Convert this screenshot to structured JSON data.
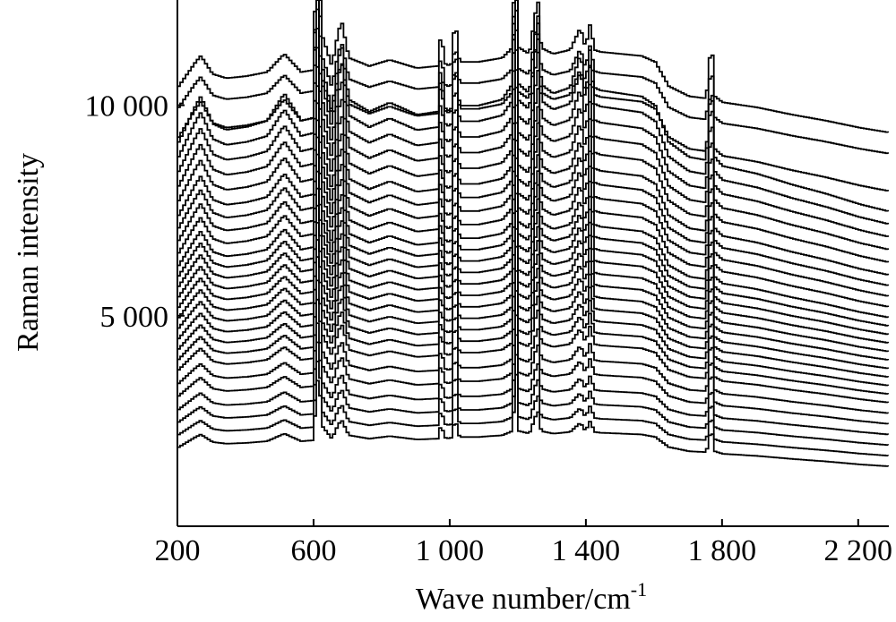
{
  "chart_data": {
    "type": "line",
    "title": "",
    "xlabel": "Wave number/cm",
    "xlabel_superscript": "-1",
    "ylabel": "Raman intensity",
    "xlim": [
      200,
      2290
    ],
    "ylim": [
      0,
      12500
    ],
    "x_ticks": [
      200,
      600,
      1000,
      1400,
      1800,
      2200
    ],
    "x_tick_labels": [
      "200",
      "600",
      "1 000",
      "1 400",
      "1 800",
      "2 200"
    ],
    "y_ticks": [
      5000,
      10000
    ],
    "y_tick_labels": [
      "5 000",
      "10 000"
    ],
    "grid": false,
    "legend": "none",
    "line_color": "#000000",
    "baseline_spectrum_x": [
      200,
      250,
      265,
      300,
      340,
      400,
      460,
      510,
      560,
      595,
      605,
      612,
      620,
      650,
      670,
      680,
      700,
      760,
      820,
      900,
      960,
      970,
      985,
      1000,
      1012,
      1025,
      1080,
      1150,
      1180,
      1192,
      1200,
      1230,
      1255,
      1265,
      1300,
      1350,
      1380,
      1395,
      1410,
      1420,
      1440,
      1500,
      1560,
      1600,
      1640,
      1700,
      1750,
      1765,
      1775,
      1790,
      1800,
      1900,
      2000,
      2100,
      2200,
      2290
    ],
    "baseline_spectrum_y": [
      2.4,
      3.6,
      3.9,
      3.0,
      2.8,
      2.9,
      3.1,
      4.0,
      3.1,
      3.2,
      9.0,
      12.0,
      5.0,
      3.4,
      5.2,
      5.5,
      3.8,
      3.4,
      3.7,
      3.3,
      3.4,
      5.0,
      3.4,
      3.5,
      5.8,
      3.6,
      3.6,
      3.8,
      4.3,
      11.0,
      4.3,
      4.0,
      6.8,
      4.3,
      4.0,
      4.2,
      5.3,
      4.3,
      5.6,
      4.2,
      4.1,
      4.0,
      3.9,
      3.6,
      2.4,
      1.9,
      1.8,
      4.8,
      1.9,
      1.7,
      1.6,
      1.35,
      1.0,
      0.7,
      0.35,
      0.1
    ],
    "series": [
      {
        "offset": 1400,
        "scale": 200
      },
      {
        "offset": 1650,
        "scale": 220
      },
      {
        "offset": 1900,
        "scale": 240
      },
      {
        "offset": 2150,
        "scale": 260
      },
      {
        "offset": 2400,
        "scale": 290
      },
      {
        "offset": 2650,
        "scale": 310
      },
      {
        "offset": 2900,
        "scale": 340
      },
      {
        "offset": 3100,
        "scale": 360
      },
      {
        "offset": 3300,
        "scale": 380
      },
      {
        "offset": 3500,
        "scale": 400
      },
      {
        "offset": 3700,
        "scale": 420
      },
      {
        "offset": 3900,
        "scale": 440
      },
      {
        "offset": 4100,
        "scale": 460
      },
      {
        "offset": 4300,
        "scale": 480
      },
      {
        "offset": 4500,
        "scale": 500
      },
      {
        "offset": 4700,
        "scale": 520
      },
      {
        "offset": 4900,
        "scale": 540
      },
      {
        "offset": 5150,
        "scale": 560
      },
      {
        "offset": 5400,
        "scale": 580
      },
      {
        "offset": 5650,
        "scale": 600
      },
      {
        "offset": 5900,
        "scale": 620
      },
      {
        "offset": 6200,
        "scale": 640
      },
      {
        "offset": 6500,
        "scale": 660
      },
      {
        "offset": 6800,
        "scale": 680
      },
      {
        "offset": 7100,
        "scale": 700
      },
      {
        "offset": 7400,
        "scale": 720
      },
      {
        "offset": 7900,
        "scale": 560
      },
      {
        "offset": 8800,
        "scale": 480
      },
      {
        "offset": 9300,
        "scale": 480
      }
    ]
  }
}
